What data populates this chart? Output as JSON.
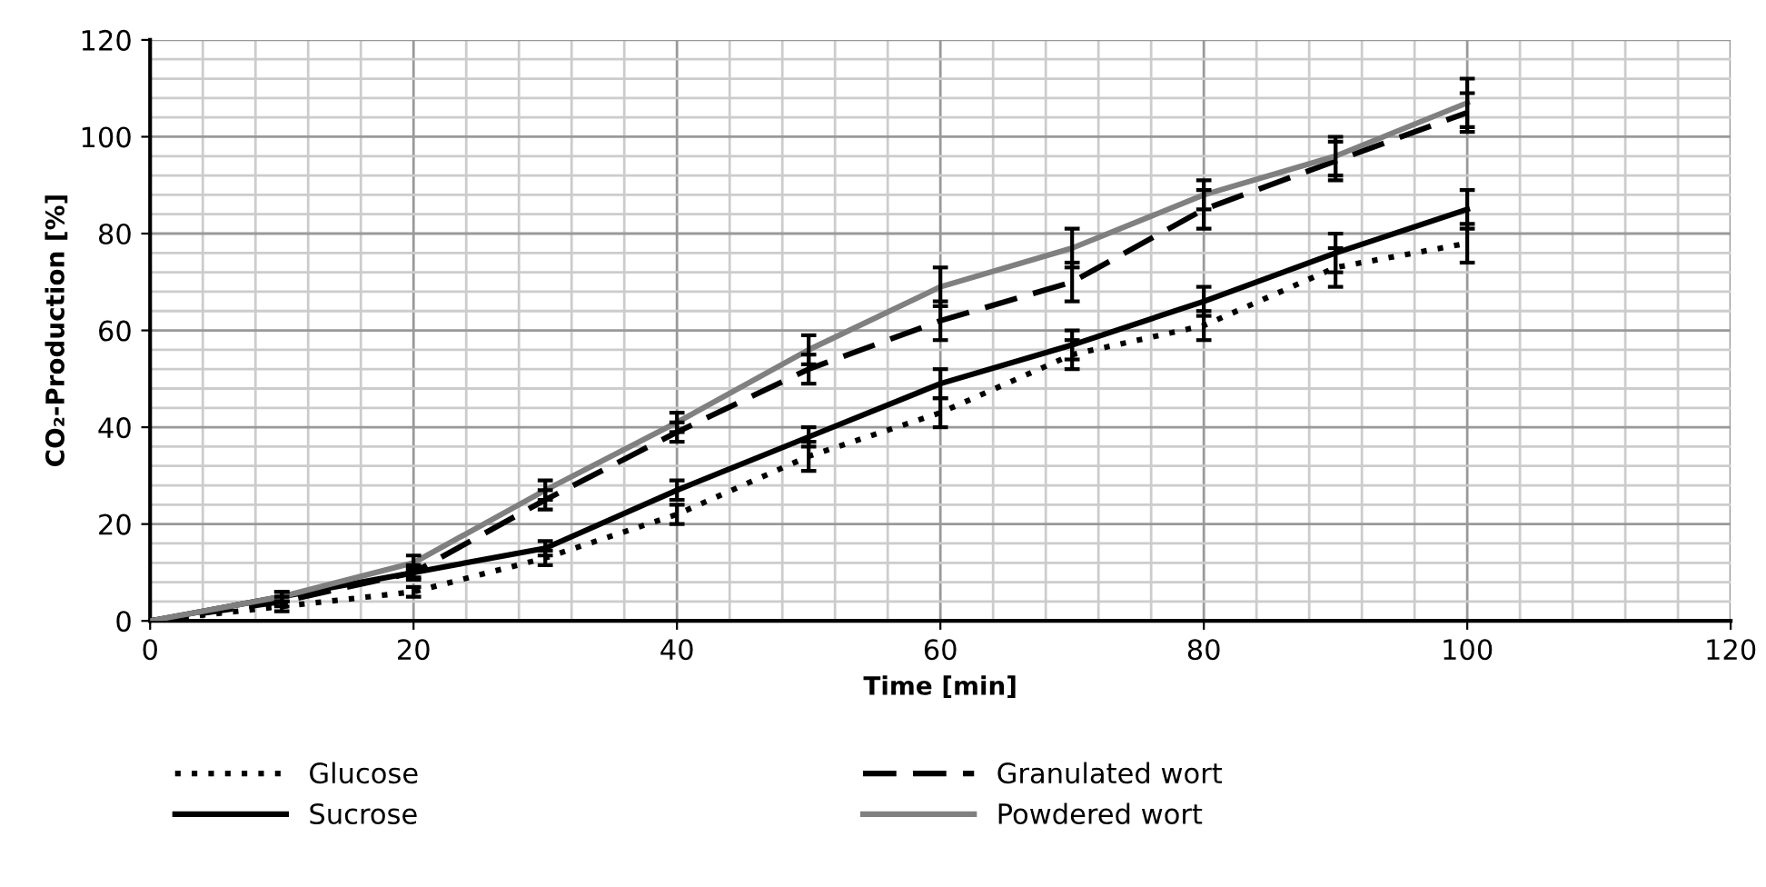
{
  "chart_data": {
    "type": "line",
    "xlabel": "Time [min]",
    "ylabel": "CO₂-Production [%]",
    "x": [
      0,
      10,
      20,
      30,
      40,
      50,
      60,
      70,
      80,
      90,
      100
    ],
    "xlim": [
      0,
      120
    ],
    "xticks": [
      0,
      20,
      40,
      60,
      80,
      100,
      120
    ],
    "ylim": [
      0,
      120
    ],
    "yticks": [
      0,
      20,
      40,
      60,
      80,
      100,
      120
    ],
    "grid": true,
    "legend": "bottom",
    "marker": "none",
    "series": [
      {
        "name": "Glucose",
        "color": "#000000",
        "line_style": "dotted",
        "values": [
          0,
          3,
          6,
          13,
          22,
          34,
          43,
          55,
          61,
          73,
          78
        ],
        "errors": [
          null,
          1,
          1,
          1.5,
          2,
          3,
          3,
          3,
          3,
          4,
          4
        ]
      },
      {
        "name": "Sucrose",
        "color": "#000000",
        "line_style": "solid",
        "values": [
          0,
          5,
          10,
          15,
          27,
          38,
          49,
          57,
          66,
          76,
          85
        ],
        "errors": [
          null,
          1,
          1,
          1.5,
          2,
          2,
          3,
          3,
          3,
          4,
          4
        ]
      },
      {
        "name": "Granulated wort",
        "color": "#000000",
        "line_style": "dashed",
        "values": [
          0,
          4,
          10,
          25,
          39,
          52,
          62,
          70,
          85,
          95,
          105
        ],
        "errors": [
          null,
          1,
          1.5,
          2,
          2,
          3,
          4,
          4,
          4,
          4,
          4
        ]
      },
      {
        "name": "Powdered wort",
        "color": "#808080",
        "line_style": "solid",
        "values": [
          0,
          5,
          12,
          27,
          41,
          56,
          69,
          77,
          88,
          96,
          107
        ],
        "errors": [
          null,
          1,
          1.5,
          2,
          2,
          3,
          4,
          4,
          3,
          4,
          5
        ]
      }
    ]
  }
}
